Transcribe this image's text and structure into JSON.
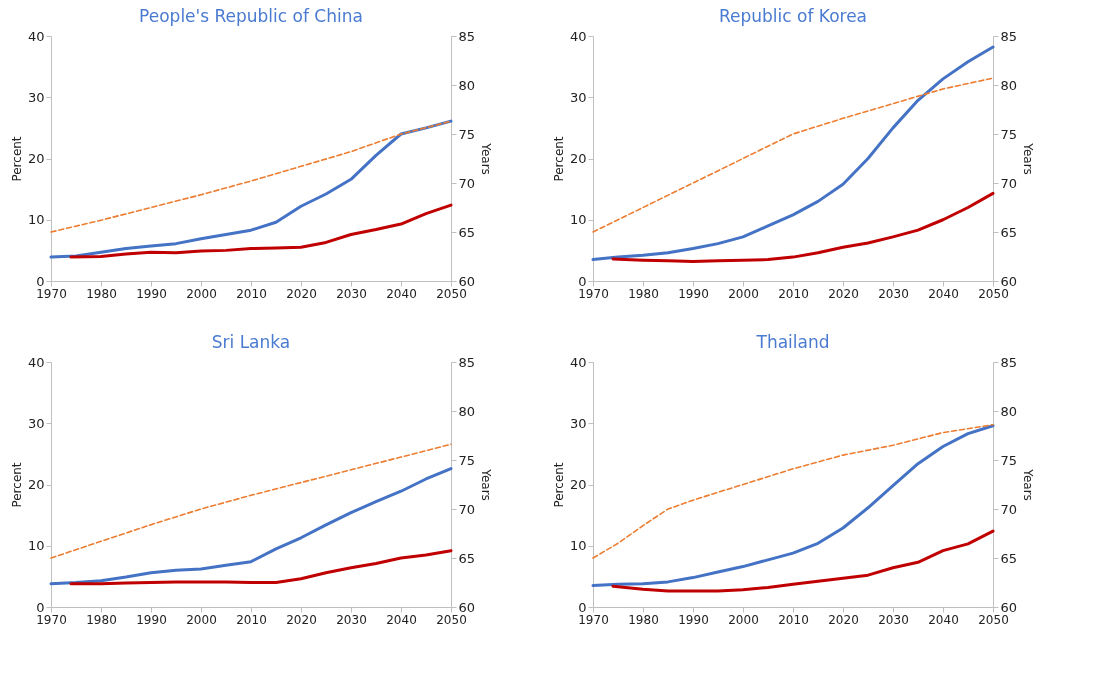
{
  "chart_data": [
    {
      "type": "line",
      "title": "People's Republic of China",
      "ylabel": "Percent",
      "y2label": "Years",
      "xlim": [
        1970,
        2050
      ],
      "xticks": [
        1970,
        1980,
        1990,
        2000,
        2010,
        2020,
        2030,
        2040,
        2050
      ],
      "ylim": [
        0,
        40
      ],
      "yticks": [
        0,
        10,
        20,
        30,
        40
      ],
      "y2lim": [
        60,
        85
      ],
      "y2ticks": [
        60,
        65,
        70,
        75,
        80,
        85
      ],
      "grid": false,
      "series": [
        {
          "color": "#4472c4",
          "x": [
            1970,
            1975,
            1980,
            1985,
            1990,
            1995,
            2000,
            2005,
            2010,
            2015,
            2020,
            2025,
            2030,
            2035,
            2040,
            2045,
            2050
          ],
          "values": [
            3.9,
            4.1,
            4.7,
            5.3,
            5.7,
            6.1,
            6.9,
            7.6,
            8.3,
            9.6,
            12.2,
            14.2,
            16.6,
            20.5,
            24.0,
            25.0,
            26.1
          ]
        },
        {
          "color": "#c00000",
          "x": [
            1974,
            1980,
            1985,
            1990,
            1995,
            2000,
            2005,
            2010,
            2015,
            2020,
            2025,
            2030,
            2035,
            2040,
            2045,
            2050
          ],
          "values": [
            3.9,
            4.0,
            4.4,
            4.7,
            4.6,
            4.9,
            5.0,
            5.3,
            5.4,
            5.5,
            6.3,
            7.6,
            8.4,
            9.3,
            11.0,
            12.4
          ]
        },
        {
          "color": "#ed7d31",
          "axis": "y2",
          "line_style": "dashed",
          "x": [
            1970,
            1980,
            1990,
            2000,
            2010,
            2020,
            2030,
            2040,
            2050
          ],
          "values": [
            65.0,
            66.2,
            67.5,
            68.8,
            70.2,
            71.7,
            73.2,
            75.0,
            76.3
          ]
        }
      ]
    },
    {
      "type": "line",
      "title": "Republic of Korea",
      "ylabel": "Percent",
      "y2label": "Years",
      "xlim": [
        1970,
        2050
      ],
      "xticks": [
        1970,
        1980,
        1990,
        2000,
        2010,
        2020,
        2030,
        2040,
        2050
      ],
      "ylim": [
        0,
        40
      ],
      "yticks": [
        0,
        10,
        20,
        30,
        40
      ],
      "y2lim": [
        60,
        85
      ],
      "y2ticks": [
        60,
        65,
        70,
        75,
        80,
        85
      ],
      "grid": false,
      "series": [
        {
          "color": "#4472c4",
          "x": [
            1970,
            1975,
            1980,
            1985,
            1990,
            1995,
            2000,
            2005,
            2010,
            2015,
            2020,
            2025,
            2030,
            2035,
            2040,
            2045,
            2050
          ],
          "values": [
            3.5,
            3.9,
            4.2,
            4.6,
            5.3,
            6.1,
            7.2,
            9.0,
            10.8,
            13.0,
            15.8,
            20.0,
            25.0,
            29.5,
            33.0,
            35.8,
            38.2
          ]
        },
        {
          "color": "#c00000",
          "x": [
            1974,
            1980,
            1985,
            1990,
            1995,
            2000,
            2005,
            2010,
            2015,
            2020,
            2025,
            2030,
            2035,
            2040,
            2045,
            2050
          ],
          "values": [
            3.6,
            3.4,
            3.3,
            3.2,
            3.3,
            3.4,
            3.5,
            3.9,
            4.6,
            5.5,
            6.2,
            7.2,
            8.3,
            10.0,
            12.0,
            14.3
          ]
        },
        {
          "color": "#ed7d31",
          "axis": "y2",
          "line_style": "dashed",
          "x": [
            1970,
            1980,
            1990,
            2000,
            2010,
            2020,
            2030,
            2040,
            2050
          ],
          "values": [
            65.0,
            67.5,
            70.0,
            72.5,
            75.0,
            76.6,
            78.1,
            79.6,
            80.7
          ]
        }
      ]
    },
    {
      "type": "line",
      "title": "Sri Lanka",
      "ylabel": "Percent",
      "y2label": "Years",
      "xlim": [
        1970,
        2050
      ],
      "xticks": [
        1970,
        1980,
        1990,
        2000,
        2010,
        2020,
        2030,
        2040,
        2050
      ],
      "ylim": [
        0,
        40
      ],
      "yticks": [
        0,
        10,
        20,
        30,
        40
      ],
      "y2lim": [
        60,
        85
      ],
      "y2ticks": [
        60,
        65,
        70,
        75,
        80,
        85
      ],
      "grid": false,
      "series": [
        {
          "color": "#4472c4",
          "x": [
            1970,
            1975,
            1980,
            1985,
            1990,
            1995,
            2000,
            2005,
            2010,
            2015,
            2020,
            2025,
            2030,
            2035,
            2040,
            2045,
            2050
          ],
          "values": [
            3.8,
            4.0,
            4.3,
            4.9,
            5.6,
            6.0,
            6.2,
            6.8,
            7.4,
            9.5,
            11.3,
            13.4,
            15.4,
            17.2,
            18.9,
            20.9,
            22.6
          ]
        },
        {
          "color": "#c00000",
          "x": [
            1974,
            1980,
            1985,
            1990,
            1995,
            2000,
            2005,
            2010,
            2015,
            2020,
            2025,
            2030,
            2035,
            2040,
            2045,
            2050
          ],
          "values": [
            3.8,
            3.8,
            3.9,
            4.0,
            4.1,
            4.1,
            4.1,
            4.0,
            4.0,
            4.6,
            5.6,
            6.4,
            7.1,
            8.0,
            8.5,
            9.2
          ]
        },
        {
          "color": "#ed7d31",
          "axis": "y2",
          "line_style": "dashed",
          "x": [
            1970,
            1980,
            1990,
            2000,
            2010,
            2020,
            2030,
            2040,
            2050
          ],
          "values": [
            65.0,
            66.7,
            68.4,
            70.0,
            71.4,
            72.7,
            74.0,
            75.3,
            76.6
          ]
        }
      ]
    },
    {
      "type": "line",
      "title": "Thailand",
      "ylabel": "Percent",
      "y2label": "Years",
      "xlim": [
        1970,
        2050
      ],
      "xticks": [
        1970,
        1980,
        1990,
        2000,
        2010,
        2020,
        2030,
        2040,
        2050
      ],
      "ylim": [
        0,
        40
      ],
      "yticks": [
        0,
        10,
        20,
        30,
        40
      ],
      "y2lim": [
        60,
        85
      ],
      "y2ticks": [
        60,
        65,
        70,
        75,
        80,
        85
      ],
      "grid": false,
      "series": [
        {
          "color": "#4472c4",
          "x": [
            1970,
            1975,
            1980,
            1985,
            1990,
            1995,
            2000,
            2005,
            2010,
            2015,
            2020,
            2025,
            2030,
            2035,
            2040,
            2045,
            2050
          ],
          "values": [
            3.5,
            3.7,
            3.8,
            4.1,
            4.8,
            5.7,
            6.6,
            7.7,
            8.8,
            10.4,
            12.9,
            16.2,
            19.8,
            23.4,
            26.2,
            28.3,
            29.6
          ]
        },
        {
          "color": "#c00000",
          "x": [
            1974,
            1980,
            1985,
            1990,
            1995,
            2000,
            2005,
            2010,
            2015,
            2020,
            2025,
            2030,
            2035,
            2040,
            2045,
            2050
          ],
          "values": [
            3.4,
            2.9,
            2.6,
            2.6,
            2.6,
            2.8,
            3.2,
            3.7,
            4.2,
            4.7,
            5.2,
            6.4,
            7.3,
            9.2,
            10.3,
            12.4
          ]
        },
        {
          "color": "#ed7d31",
          "axis": "y2",
          "line_style": "dashed",
          "x": [
            1970,
            1975,
            1980,
            1985,
            1990,
            2000,
            2010,
            2020,
            2030,
            2040,
            2050
          ],
          "values": [
            65.0,
            66.5,
            68.3,
            70.0,
            70.9,
            72.5,
            74.1,
            75.5,
            76.5,
            77.8,
            78.6
          ]
        }
      ]
    }
  ]
}
